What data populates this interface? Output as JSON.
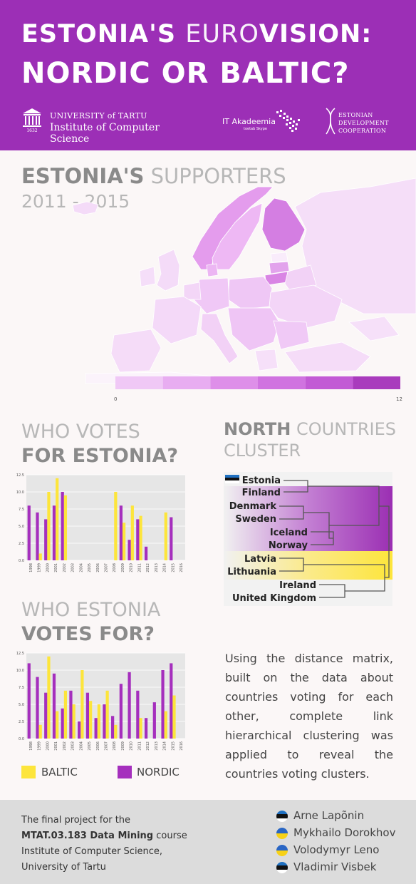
{
  "header": {
    "title_line1_bold": "ESTONIA'S ",
    "title_line1_light": "EURO",
    "title_line1_bold2": "VISION:",
    "title_line2": "NORDIC OR BALTIC?",
    "logos": {
      "ut_line1": "UNIVERSITY of TARTU",
      "ut_line2": "Institute of Computer Science",
      "ut_year": "1632",
      "it_line1": "IT Akadeemia",
      "it_line2": "toetab Skype",
      "edc_line1": "ESTONIAN",
      "edc_line2": "DEVELOPMENT",
      "edc_line3": "COOPERATION"
    }
  },
  "supporters": {
    "title_bold": "ESTONIA'S",
    "title_light": " SUPPORTERS",
    "subtitle": "2011 - 2015",
    "scale_min": "0",
    "scale_max": "12",
    "scale_colors": [
      "#f0c8f6",
      "#e8adf1",
      "#de8fe9",
      "#d073e0",
      "#c25ad5",
      "#a93bbd"
    ]
  },
  "who_votes": {
    "line1": "WHO VOTES",
    "line2": "FOR ESTONIA?"
  },
  "north": {
    "bold": "NORTH",
    "light": " COUNTRIES",
    "line2": "CLUSTER"
  },
  "who_estonia": {
    "line1": "WHO ESTONIA",
    "line2": "VOTES FOR?"
  },
  "legend": {
    "baltic": "BALTIC",
    "nordic": "NORDIC"
  },
  "colors": {
    "baltic": "#fde53b",
    "nordic": "#a52fbd",
    "header": "#9c2fb6"
  },
  "description_lines": [
    "Using the distance matrix,",
    "built on the data about",
    "countries voting for each",
    "other, complete link",
    "hierarchical clustering was",
    "applied to reveal the",
    "countries voting clusters."
  ],
  "dendrogram": {
    "labels": [
      "Estonia",
      "Finland",
      "Denmark",
      "Sweden",
      "Iceland",
      "Norway",
      "Latvia",
      "Lithuania",
      "Ireland",
      "United Kingdom"
    ]
  },
  "footer": {
    "line1": "The final project for the",
    "line2_bold": "MTAT.03.183 Data Mining",
    "line2_rest": " course",
    "line3": "Institute of Computer Science,",
    "line4": "University of Tartu",
    "authors": [
      {
        "name": "Arne Lapõnin",
        "flag": "ee"
      },
      {
        "name": "Mykhailo Dorokhov",
        "flag": "ua"
      },
      {
        "name": "Volodymyr Leno",
        "flag": "ua"
      },
      {
        "name": "Vladimir Visbek",
        "flag": "ee"
      }
    ]
  },
  "chart_data": [
    {
      "type": "bar",
      "title": "WHO VOTES FOR ESTONIA?",
      "categories": [
        "1998",
        "1999",
        "2000",
        "2001",
        "2002",
        "2003",
        "2004",
        "2005",
        "2006",
        "2007",
        "2008",
        "2009",
        "2010",
        "2011",
        "2012",
        "2013",
        "2014",
        "2015",
        "2016"
      ],
      "yticks": [
        "0.0",
        "2.5",
        "5.0",
        "7.5",
        "10.0",
        "12.5"
      ],
      "ylim": [
        0,
        12.5
      ],
      "series": [
        {
          "name": "NORDIC",
          "values": [
            8,
            7,
            6,
            8,
            10,
            0,
            0,
            0,
            0,
            0,
            0,
            8,
            3,
            6,
            2,
            0,
            0,
            6.3,
            0
          ]
        },
        {
          "name": "BALTIC",
          "values": [
            0,
            1,
            10,
            12,
            9.5,
            0,
            0,
            0,
            0,
            0,
            10,
            5.5,
            8,
            6.5,
            0,
            0,
            7,
            0,
            0
          ]
        }
      ]
    },
    {
      "type": "bar",
      "title": "WHO ESTONIA VOTES FOR?",
      "categories": [
        "1998",
        "1999",
        "2000",
        "2001",
        "2002",
        "2003",
        "2004",
        "2005",
        "2006",
        "2007",
        "2008",
        "2009",
        "2010",
        "2011",
        "2012",
        "2013",
        "2014",
        "2015",
        "2016"
      ],
      "yticks": [
        "0.0",
        "2.5",
        "5.0",
        "7.5",
        "10.0",
        "12.5"
      ],
      "ylim": [
        0,
        12.5
      ],
      "series": [
        {
          "name": "NORDIC",
          "values": [
            11,
            9,
            6.7,
            9.5,
            4.4,
            7,
            2.5,
            6.7,
            3,
            5,
            3.3,
            8,
            9.7,
            7,
            3,
            5.3,
            10,
            11,
            0
          ]
        },
        {
          "name": "BALTIC",
          "values": [
            0,
            2,
            12,
            4,
            7,
            5,
            10,
            5.5,
            5,
            7,
            2,
            0,
            0,
            3,
            0,
            0,
            4,
            6.3,
            0
          ]
        }
      ]
    }
  ]
}
